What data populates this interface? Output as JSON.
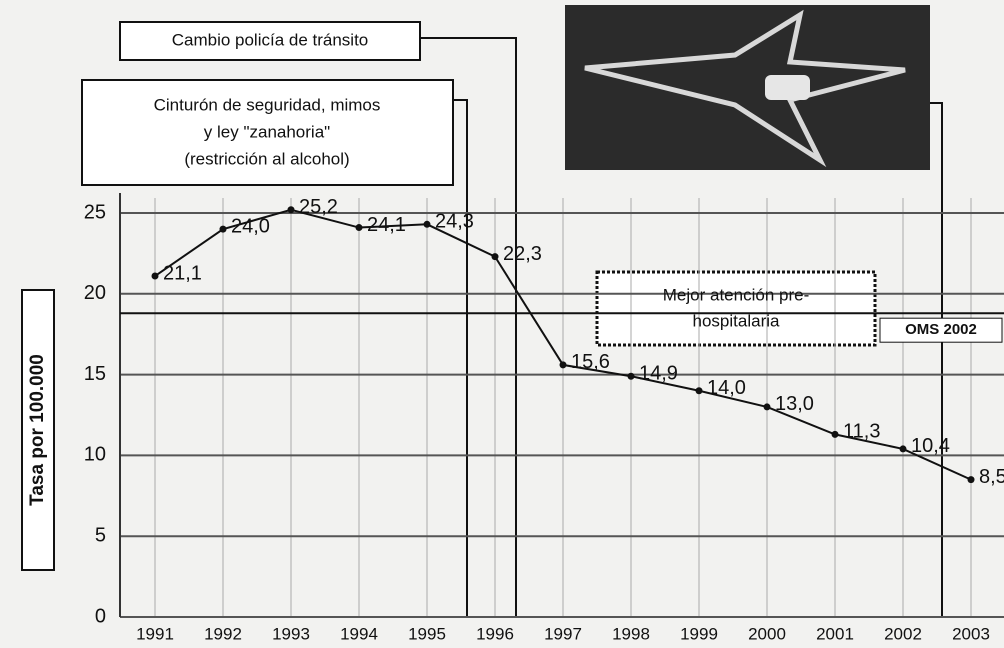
{
  "chart_data": {
    "type": "line",
    "y_label": "Tasa por 100.000",
    "categories": [
      "1991",
      "1992",
      "1993",
      "1994",
      "1995",
      "1996",
      "1997",
      "1998",
      "1999",
      "2000",
      "2001",
      "2002",
      "2003"
    ],
    "values": [
      21.1,
      24.0,
      25.2,
      24.1,
      24.3,
      22.3,
      15.6,
      14.9,
      14.0,
      13.0,
      11.3,
      10.4,
      8.5
    ],
    "value_labels": [
      "21,1",
      "24,0",
      "25,2",
      "24,1",
      "24,3",
      "22,3",
      "15,6",
      "14,9",
      "14,0",
      "13,0",
      "11,3",
      "10,4",
      "8,5"
    ],
    "color": "#111111",
    "ylim": [
      0,
      25
    ],
    "yticks": [
      0,
      5,
      10,
      15,
      20,
      25
    ],
    "grid": true,
    "reference_line": {
      "value": 18.8,
      "label": "OMS 2002"
    },
    "annotations": [
      {
        "lines": [
          "Cambio policía de tránsito"
        ]
      },
      {
        "lines": [
          "Cinturón de seguridad, mimos",
          "y ley \"zanahoria\"",
          "(restricción al alcohol)"
        ]
      },
      {
        "lines": [
          "Mejor atención pre-",
          "hospitalaria"
        ]
      }
    ]
  }
}
